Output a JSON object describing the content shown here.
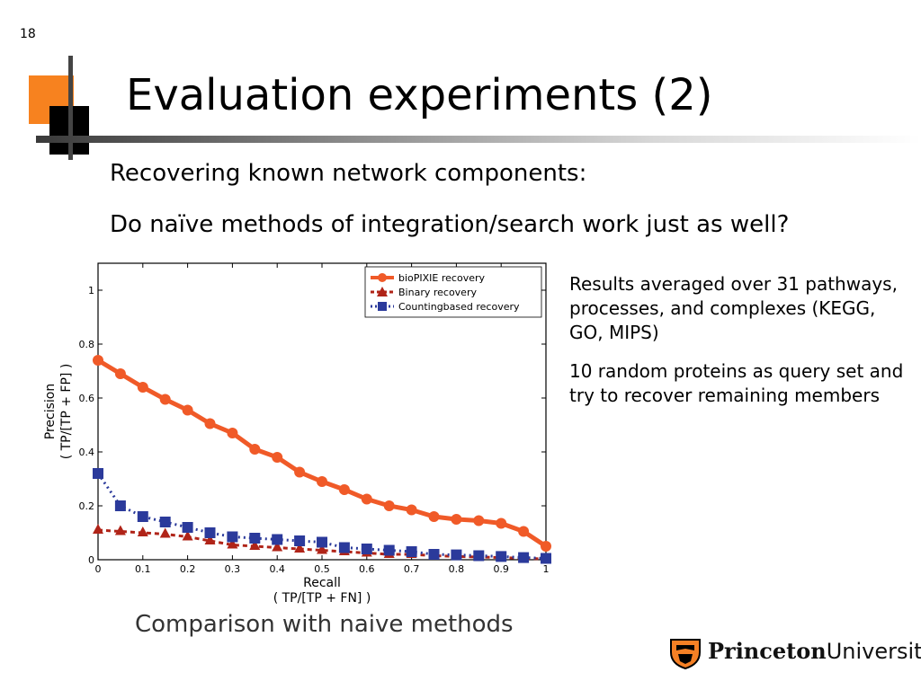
{
  "slide_number": "18",
  "title": "Evaluation experiments (2)",
  "bullets": [
    "Recovering known network components:",
    "Do naïve methods of integration/search work just as well?"
  ],
  "notes": [
    "Results averaged over 31 pathways, processes, and complexes (KEGG, GO, MIPS)",
    "10 random proteins as query set and try to recover remaining members"
  ],
  "caption": "Comparison with naive methods",
  "logo": {
    "word1": "Princeton",
    "word2": "University",
    "icon": "princeton-shield-icon"
  },
  "colors": {
    "accent": "#f7821f",
    "biopixie": "#f05a28",
    "binary": "#b02418",
    "counting": "#2b3a9b"
  },
  "chart_data": {
    "type": "line",
    "title": "",
    "xlabel": "Recall",
    "xlabel_sub": "( TP/[TP + FN] )",
    "ylabel": "Precision",
    "ylabel_sub": "( TP/[TP + FP] )",
    "xlim": [
      0,
      1
    ],
    "ylim": [
      0,
      1.1
    ],
    "x_ticks": [
      "0",
      "0.1",
      "0.2",
      "0.3",
      "0.4",
      "0.5",
      "0.6",
      "0.7",
      "0.8",
      "0.9",
      "1"
    ],
    "y_ticks": [
      "0",
      "0.2",
      "0.4",
      "0.6",
      "0.8",
      "1"
    ],
    "legend_position": "top-right",
    "x": [
      0,
      0.05,
      0.1,
      0.15,
      0.2,
      0.25,
      0.3,
      0.35,
      0.4,
      0.45,
      0.5,
      0.55,
      0.6,
      0.65,
      0.7,
      0.75,
      0.8,
      0.85,
      0.9,
      0.95,
      1
    ],
    "series": [
      {
        "name": "bioPIXIE recovery",
        "marker": "circle",
        "color": "#f05a28",
        "values": [
          0.74,
          0.69,
          0.64,
          0.595,
          0.555,
          0.505,
          0.47,
          0.41,
          0.38,
          0.325,
          0.29,
          0.26,
          0.225,
          0.2,
          0.185,
          0.16,
          0.15,
          0.145,
          0.135,
          0.105,
          0.05
        ]
      },
      {
        "name": "Binary recovery",
        "marker": "triangle",
        "color": "#b02418",
        "values": [
          0.11,
          0.105,
          0.1,
          0.095,
          0.085,
          0.07,
          0.055,
          0.05,
          0.045,
          0.04,
          0.035,
          0.03,
          0.025,
          0.02,
          0.02,
          0.015,
          0.012,
          0.01,
          0.008,
          0.005,
          0.003
        ]
      },
      {
        "name": "Countingbased recovery",
        "marker": "square",
        "color": "#2b3a9b",
        "values": [
          0.32,
          0.2,
          0.16,
          0.14,
          0.12,
          0.1,
          0.085,
          0.08,
          0.075,
          0.07,
          0.065,
          0.045,
          0.04,
          0.035,
          0.03,
          0.02,
          0.018,
          0.015,
          0.012,
          0.008,
          0.005
        ]
      }
    ]
  }
}
